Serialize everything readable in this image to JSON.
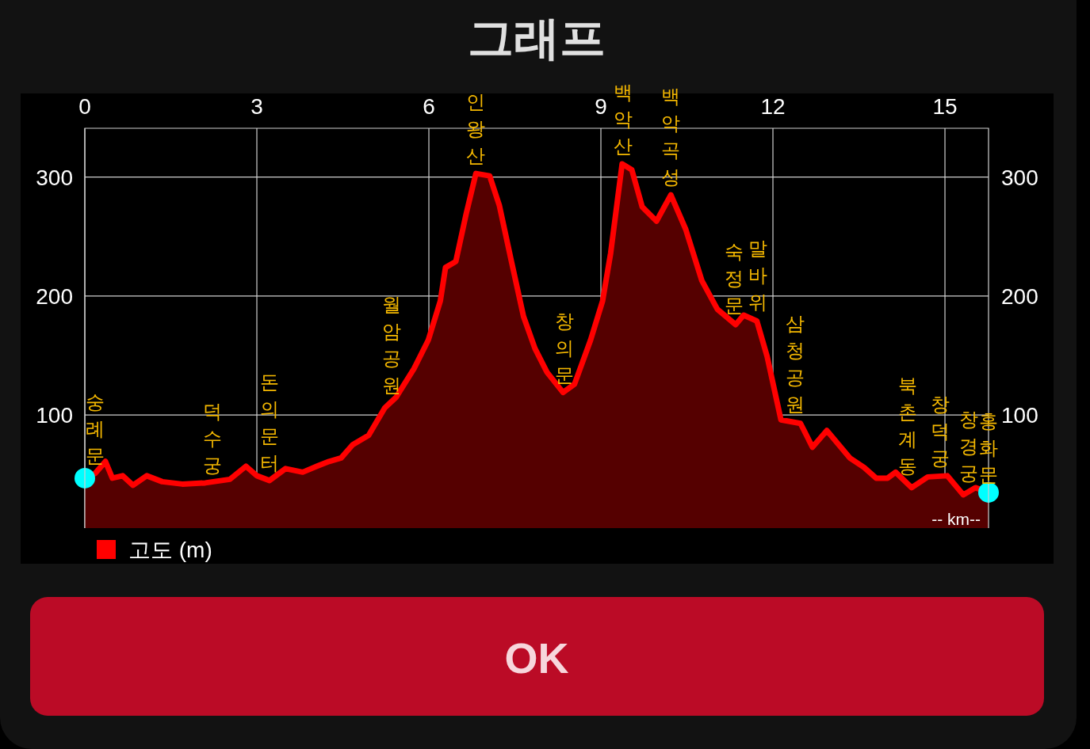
{
  "chart_data": {
    "type": "area",
    "title": "그래프",
    "xlabel": "-- km--",
    "x": [
      0,
      0.18,
      0.36,
      0.48,
      0.66,
      0.84,
      1.08,
      1.35,
      1.7,
      2.1,
      2.53,
      2.81,
      3.0,
      3.22,
      3.5,
      3.8,
      4.05,
      4.26,
      4.47,
      4.67,
      4.95,
      5.23,
      5.43,
      5.74,
      5.99,
      6.2,
      6.29,
      6.47,
      6.65,
      6.82,
      7.06,
      7.23,
      7.44,
      7.65,
      7.85,
      8.06,
      8.34,
      8.54,
      8.82,
      9.03,
      9.17,
      9.37,
      9.54,
      9.72,
      9.97,
      10.22,
      10.48,
      10.76,
      11.03,
      11.35,
      11.49,
      11.72,
      11.9,
      12.14,
      12.48,
      12.69,
      12.94,
      13.34,
      13.59,
      13.8,
      14.0,
      14.14,
      14.42,
      14.7,
      15.04,
      15.32,
      15.53,
      15.76
    ],
    "series": [
      {
        "name": "고도 (m)",
        "color": "#ff0000",
        "values": [
          47,
          51,
          61,
          47,
          49,
          41,
          49,
          44,
          42,
          43,
          46,
          57,
          49,
          45,
          55,
          52,
          57,
          61,
          64,
          75,
          83,
          106,
          115,
          139,
          163,
          196,
          224,
          229,
          269,
          303,
          301,
          276,
          229,
          183,
          156,
          136,
          119,
          126,
          163,
          196,
          236,
          311,
          306,
          275,
          263,
          285,
          256,
          213,
          189,
          176,
          184,
          179,
          149,
          96,
          93,
          73,
          87,
          64,
          56,
          47,
          47,
          52,
          39,
          48,
          49,
          33,
          39,
          35
        ]
      },
      {
        "type": "scatter",
        "marker": "circle",
        "color": "#00ffff",
        "x": [
          0,
          15.76
        ],
        "values": [
          47,
          35
        ]
      }
    ],
    "xlim": [
      0,
      15.76
    ],
    "xticks": [
      0,
      3,
      6,
      9,
      12,
      15
    ],
    "ylim": [
      5,
      341
    ],
    "yticks": [
      100,
      200,
      300
    ],
    "y2lim": [
      5,
      341
    ],
    "y2ticks": [
      100,
      200,
      300
    ],
    "grid": true,
    "legend": "bottom left",
    "annotations": [
      {
        "text": "숭례문",
        "x": 0.18,
        "y": 51
      },
      {
        "text": "덕수궁",
        "x": 2.23,
        "y": 43
      },
      {
        "text": "돈의문터",
        "x": 3.22,
        "y": 45
      },
      {
        "text": "월암공원",
        "x": 5.35,
        "y": 110
      },
      {
        "text": "인왕산",
        "x": 6.82,
        "y": 303
      },
      {
        "text": "창의문",
        "x": 8.36,
        "y": 119
      },
      {
        "text": "백악산",
        "x": 9.39,
        "y": 311
      },
      {
        "text": "백악곡성",
        "x": 10.22,
        "y": 285
      },
      {
        "text": "숙정문",
        "x": 11.32,
        "y": 177
      },
      {
        "text": "말바위",
        "x": 11.74,
        "y": 180
      },
      {
        "text": "삼청공원",
        "x": 12.39,
        "y": 94
      },
      {
        "text": "북촌계동",
        "x": 14.35,
        "y": 42
      },
      {
        "text": "창덕궁",
        "x": 14.92,
        "y": 49
      },
      {
        "text": "창경궁",
        "x": 15.42,
        "y": 36
      },
      {
        "text": "홍화문",
        "x": 15.76,
        "y": 35
      },
      "OK"
    ]
  }
}
